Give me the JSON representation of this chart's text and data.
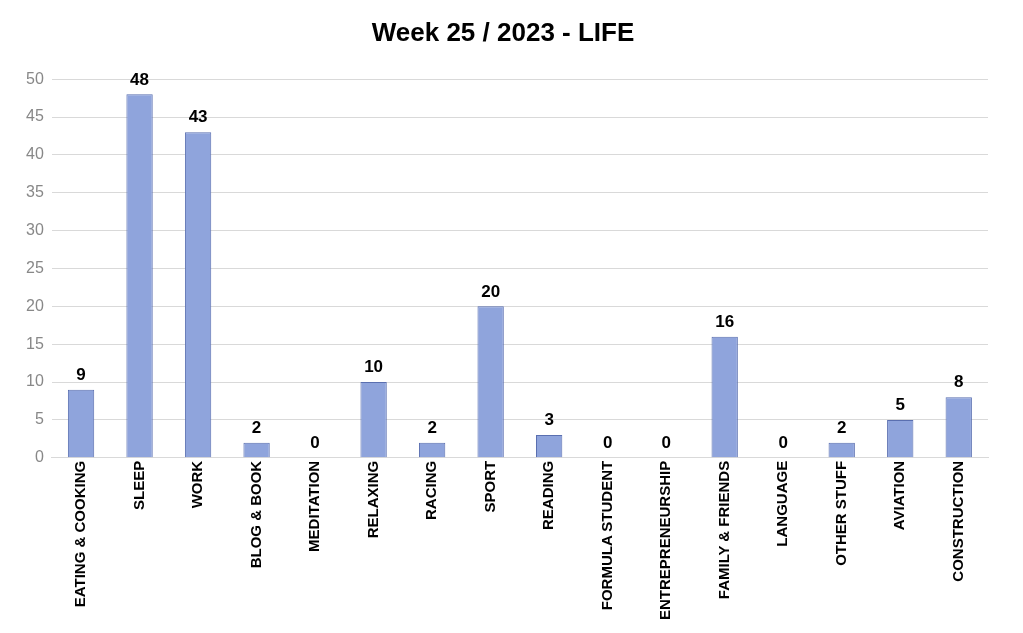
{
  "chart_data": {
    "type": "bar",
    "title": "Week 25 / 2023 - LIFE",
    "categories": [
      "EATING & COOKING",
      "SLEEP",
      "WORK",
      "BLOG & BOOK",
      "MEDITATION",
      "RELAXING",
      "RACING",
      "SPORT",
      "READING",
      "FORMULA STUDENT",
      "ENTREPRENEURSHIP",
      "FAMILY & FRIENDS",
      "LANGUAGE",
      "OTHER STUFF",
      "AVIATION",
      "CONSTRUCTION"
    ],
    "values": [
      9,
      48,
      43,
      2,
      0,
      10,
      2,
      20,
      3,
      0,
      0,
      16,
      0,
      2,
      5,
      8
    ],
    "color": "#8fa4dc",
    "ylim": [
      0,
      50
    ],
    "yticks": [
      0,
      5,
      10,
      15,
      20,
      25,
      30,
      35,
      40,
      45,
      50
    ],
    "grid": "y",
    "legend": false,
    "data_labels": true
  }
}
